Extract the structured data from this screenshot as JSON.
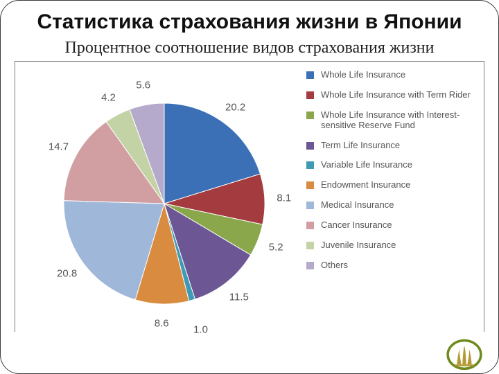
{
  "title": "Статистика страхования жизни в Японии",
  "subtitle": "Процентное соотношение видов страхования жизни",
  "chart": {
    "type": "pie",
    "background_color": "#ffffff",
    "border_color": "#7a7a7a",
    "label_fontsize": 15,
    "label_color": "#555555",
    "start_angle_deg": -90,
    "segments": [
      {
        "label": "Whole Life Insurance",
        "value": 20.2,
        "color": "#3b6fb6",
        "show_label": true
      },
      {
        "label": "Whole Life Insurance with Term Rider",
        "value": 8.1,
        "color": "#a43b3e",
        "show_label": true
      },
      {
        "label": "Whole Life Insurance with Interest-sensitive Reserve Fund",
        "value": 5.2,
        "color": "#8aa74c",
        "show_label": true
      },
      {
        "label": "Term Life Insurance",
        "value": 11.5,
        "color": "#6c5693",
        "show_label": true
      },
      {
        "label": "Variable Life Insurance",
        "value": 1.0,
        "color": "#3f9bb4",
        "show_label": true
      },
      {
        "label": "Endowment Insurance",
        "value": 8.6,
        "color": "#d98b3f",
        "show_label": true
      },
      {
        "label": "Medical Insurance",
        "value": 20.8,
        "color": "#9fb7d8",
        "show_label": true
      },
      {
        "label": "Cancer Insurance",
        "value": 14.7,
        "color": "#d19fa1",
        "show_label": true
      },
      {
        "label": "Juvenile Insurance",
        "value": 4.2,
        "color": "#c3d3a6",
        "show_label": true
      },
      {
        "label": "Others",
        "value": 5.6,
        "color": "#b5aacb",
        "show_label": true
      }
    ],
    "legend": {
      "fontsize": 13,
      "color": "#555555",
      "swatch_size": 11
    }
  },
  "logo": {
    "ring_color": "#6f8a1e",
    "figure_color": "#b49a33"
  }
}
